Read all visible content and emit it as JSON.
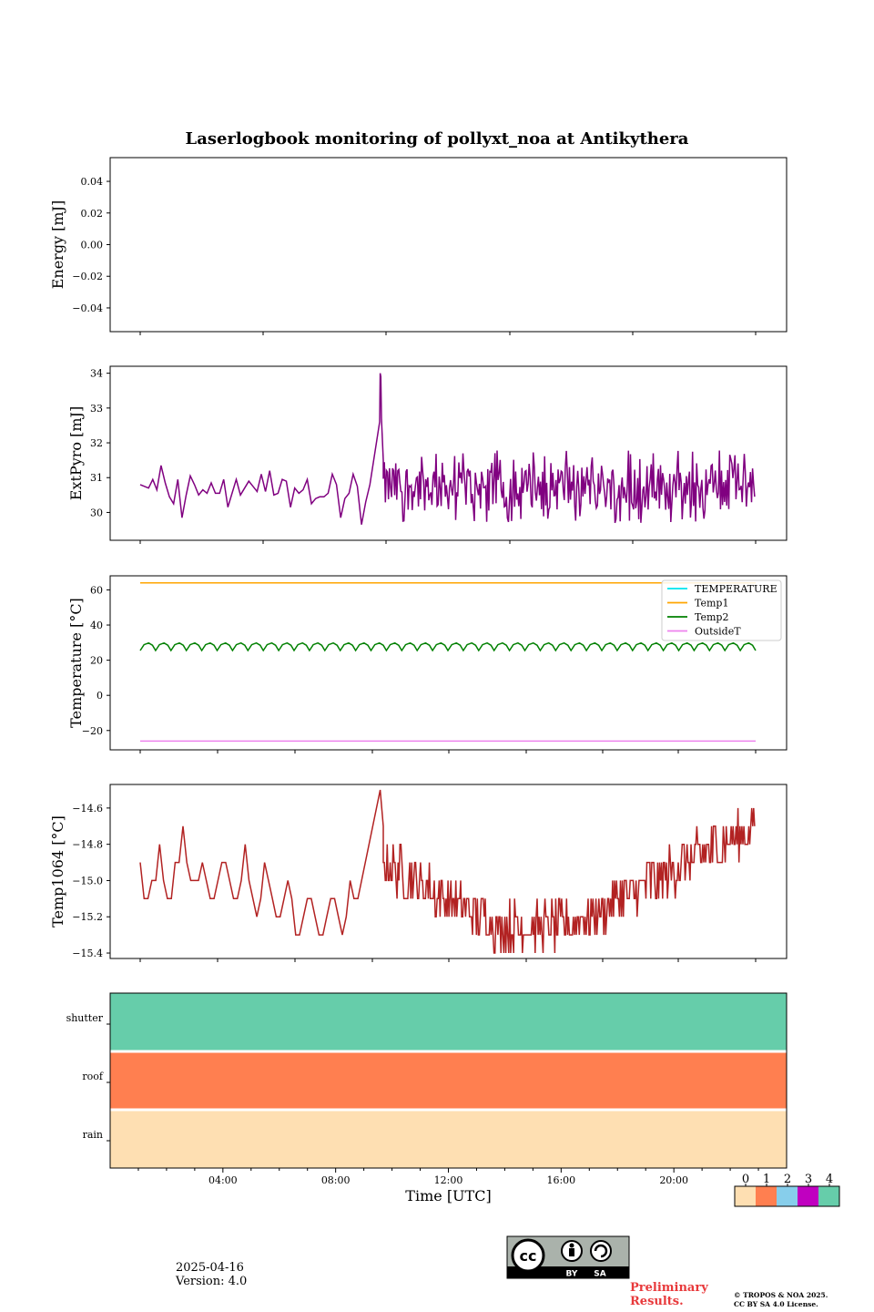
{
  "title": "Laserlogbook monitoring of pollyxt_noa at Antikythera",
  "chart_data": [
    {
      "type": "line",
      "name": "energy",
      "ylabel": "Energy [mJ]",
      "ylim": [
        -0.055,
        0.055
      ],
      "yticks": [
        0.04,
        0.02,
        0.0,
        -0.02,
        -0.04
      ],
      "ytick_labels": [
        "0.04",
        "0.02",
        "0.00",
        "−0.02",
        "−0.04"
      ],
      "series": []
    },
    {
      "type": "line",
      "name": "extpyro",
      "ylabel": "ExtPyro [mJ]",
      "ylim": [
        29.2,
        34.2
      ],
      "yticks": [
        30,
        31,
        32,
        33,
        34
      ],
      "ytick_labels": [
        "30",
        "31",
        "32",
        "33",
        "34"
      ],
      "color": "#800080"
    },
    {
      "type": "line",
      "name": "temperature",
      "ylabel": "Temperature [°C]",
      "ylim": [
        -31,
        68
      ],
      "yticks": [
        60,
        40,
        20,
        0,
        -20
      ],
      "ytick_labels": [
        "60",
        "40",
        "20",
        "0",
        "−20"
      ],
      "legend_position": "upper right",
      "legend": [
        {
          "name": "TEMPERATURE",
          "color": "#00e5ee"
        },
        {
          "name": "Temp1",
          "color": "#ffa500"
        },
        {
          "name": "Temp2",
          "color": "#008000"
        },
        {
          "name": "OutsideT",
          "color": "#ee82ee"
        }
      ],
      "temp1_value": 64.0,
      "outside_value": -26.0
    },
    {
      "type": "line",
      "name": "temp1064",
      "ylabel": "Temp1064 [°C]",
      "ylim": [
        -15.43,
        -14.47
      ],
      "yticks": [
        -14.6,
        -14.8,
        -15.0,
        -15.2,
        -15.4
      ],
      "ytick_labels": [
        "−14.6",
        "−14.8",
        "−15.0",
        "−15.2",
        "−15.4"
      ],
      "color": "#b22222"
    },
    {
      "type": "heatmap",
      "name": "status",
      "rows": [
        "shutter",
        "roof",
        "rain"
      ],
      "row_values": [
        4,
        1,
        0
      ],
      "xlabel": "Time [UTC]",
      "xticks_hours": [
        4,
        8,
        12,
        16,
        20
      ],
      "xtick_labels": [
        "04:00",
        "08:00",
        "12:00",
        "16:00",
        "20:00"
      ],
      "xlim_hours": [
        0,
        24
      ]
    }
  ],
  "colorbar": {
    "ticks": [
      "0",
      "1",
      "2",
      "3",
      "4"
    ],
    "colors": [
      "#fedfb2",
      "#ff7f50",
      "#87ceeb",
      "#c000c0",
      "#66cdaa"
    ]
  },
  "footer": {
    "date": "2025-04-16",
    "version": "Version: 4.0",
    "preliminary_line1": "Preliminary",
    "preliminary_line2": "Results.",
    "copyright_line1": "© TROPOS & NOA 2025.",
    "copyright_line2": "CC BY SA 4.0 License.",
    "cc_by": "BY",
    "cc_sa": "SA"
  }
}
